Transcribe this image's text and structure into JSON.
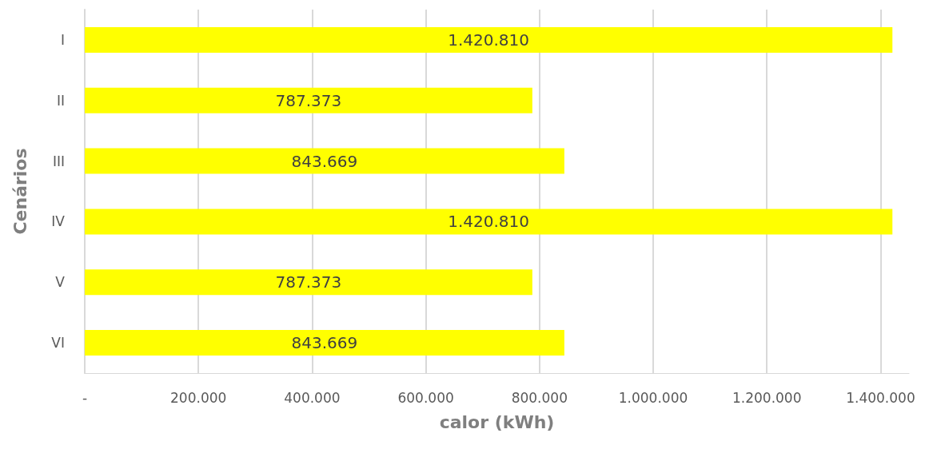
{
  "chart_data": {
    "type": "bar",
    "orientation": "horizontal",
    "ylabel": "Cenários",
    "xlabel": "calor (kWh)",
    "categories": [
      "I",
      "II",
      "III",
      "IV",
      "V",
      "VI"
    ],
    "values": [
      1420810,
      787373,
      843669,
      1420810,
      787373,
      843669
    ],
    "value_labels": [
      "1.420.810",
      "787.373",
      "843.669",
      "1.420.810",
      "787.373",
      "843.669"
    ],
    "color": "#ffff00",
    "xlim": [
      0,
      1450000
    ],
    "xticks": [
      {
        "value": 0,
        "label": "-"
      },
      {
        "value": 200000,
        "label": "200.000"
      },
      {
        "value": 400000,
        "label": "400.000"
      },
      {
        "value": 600000,
        "label": "600.000"
      },
      {
        "value": 800000,
        "label": "800.000"
      },
      {
        "value": 1000000,
        "label": "1.000.000"
      },
      {
        "value": 1200000,
        "label": "1.200.000"
      },
      {
        "value": 1400000,
        "label": "1.400.000"
      }
    ],
    "grid": "x"
  }
}
